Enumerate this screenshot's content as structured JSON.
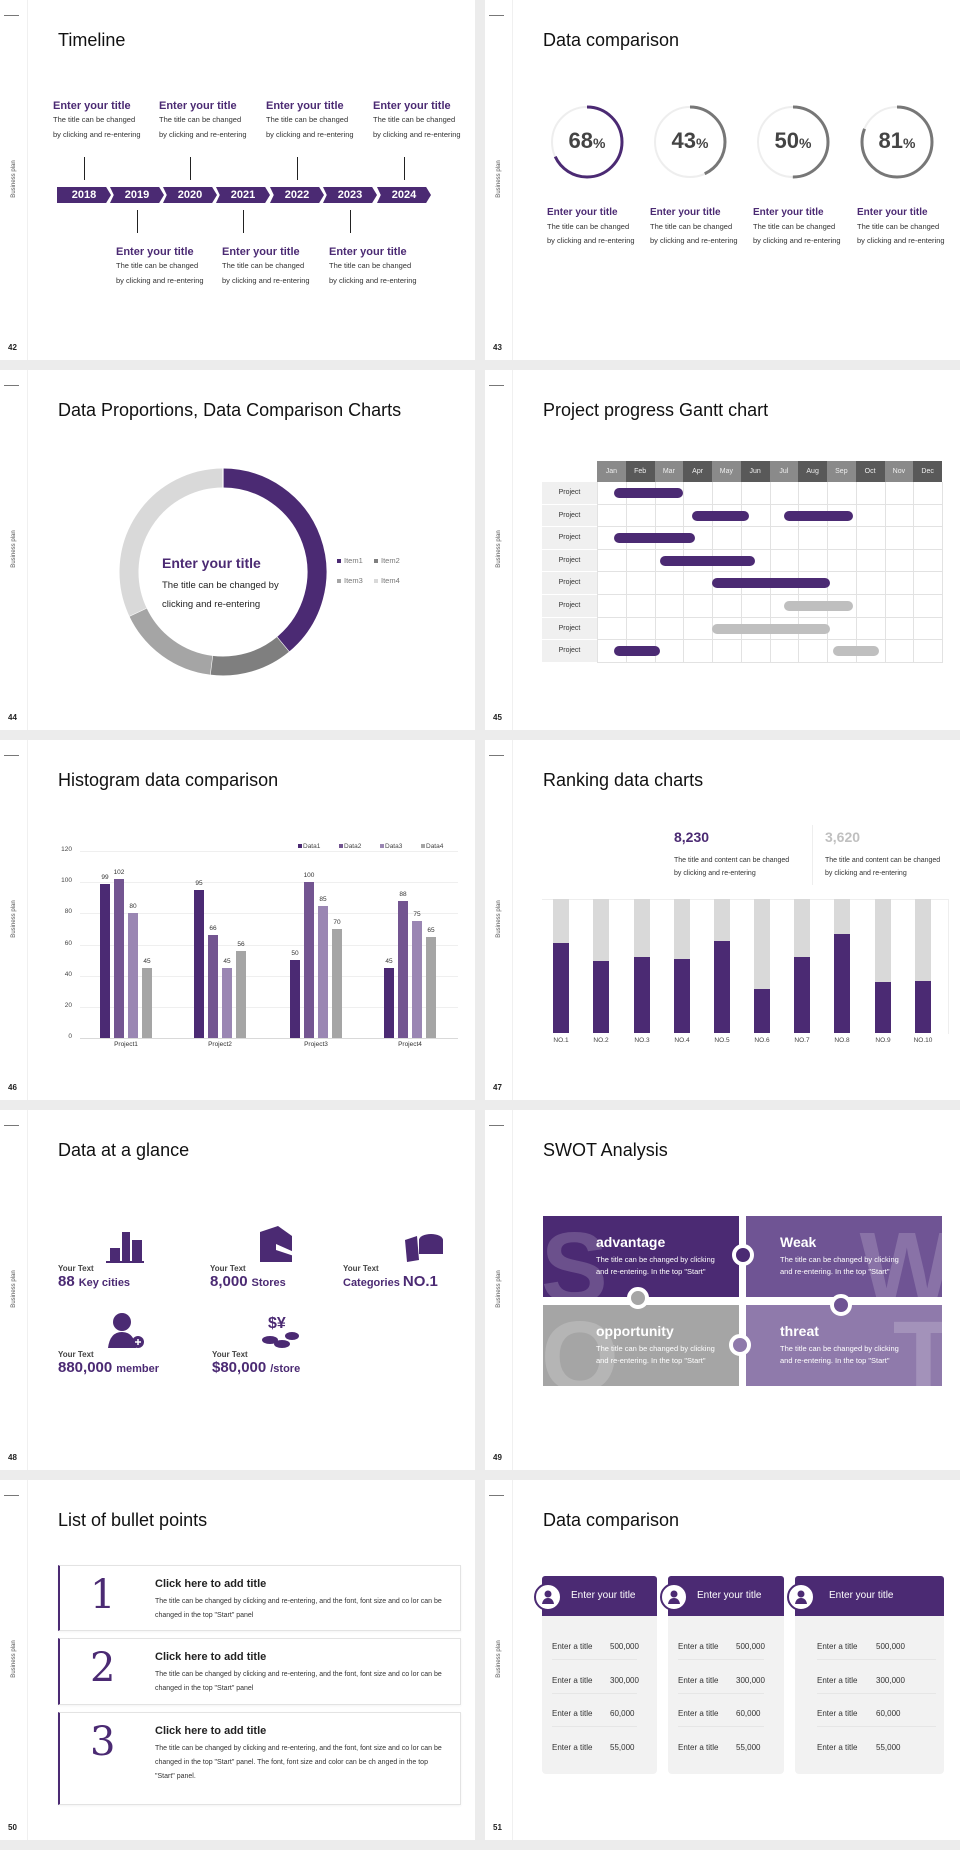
{
  "footer_label": "Business plan",
  "colors": {
    "accent": "#4b2a73",
    "accent2": "#735591",
    "accent3": "#9a86b3",
    "gray": "#a5a5a5",
    "dark_gray": "#7f7f7f",
    "light_gray": "#d9d9d9"
  },
  "slides": [
    {
      "page": "42",
      "title": "Timeline",
      "years": [
        "2018",
        "2019",
        "2020",
        "2021",
        "2022",
        "2023",
        "2024"
      ],
      "events": [
        {
          "title": "Enter your title",
          "desc1": "The title can be changed",
          "desc2": "by clicking and re-entering"
        },
        {
          "title": "Enter your title",
          "desc1": "The title can be changed",
          "desc2": "by clicking and re-entering"
        },
        {
          "title": "Enter your title",
          "desc1": "The title can be changed",
          "desc2": "by clicking and re-entering"
        },
        {
          "title": "Enter your title",
          "desc1": "The title can be changed",
          "desc2": "by clicking and re-entering"
        },
        {
          "title": "Enter your title",
          "desc1": "The title can be changed",
          "desc2": "by clicking and re-entering"
        },
        {
          "title": "Enter your title",
          "desc1": "The title can be changed",
          "desc2": "by clicking and re-entering"
        },
        {
          "title": "Enter your title",
          "desc1": "The title can be changed",
          "desc2": "by clicking and re-entering"
        }
      ]
    },
    {
      "page": "43",
      "title": "Data comparison",
      "items": [
        {
          "value": 68,
          "number": "68",
          "unit": "%",
          "color": "#4b2a73",
          "title": "Enter your title",
          "desc1": "The title can be changed",
          "desc2": "by clicking and re-entering"
        },
        {
          "value": 43,
          "number": "43",
          "unit": "%",
          "color": "#777777",
          "title": "Enter your title",
          "desc1": "The title can be changed",
          "desc2": "by clicking and re-entering"
        },
        {
          "value": 50,
          "number": "50",
          "unit": "%",
          "color": "#777777",
          "title": "Enter your title",
          "desc1": "The title can be changed",
          "desc2": "by clicking and re-entering"
        },
        {
          "value": 81,
          "number": "81",
          "unit": "%",
          "color": "#777777",
          "title": "Enter your title",
          "desc1": "The title can be changed",
          "desc2": "by clicking and re-entering"
        }
      ]
    },
    {
      "page": "44",
      "title": "Data Proportions, Data Comparison Charts",
      "center_title": "Enter your title",
      "center_desc1": "The title can be changed by",
      "center_desc2": "clicking and re-entering"
    },
    {
      "page": "45",
      "title": "Project progress Gantt chart"
    },
    {
      "page": "46",
      "title": "Histogram data comparison"
    },
    {
      "page": "47",
      "title": "Ranking data charts",
      "stats": [
        {
          "value": "8,230",
          "color": "#4b2a73",
          "desc1": "The title and content can be changed",
          "desc2": "by clicking and re-entering"
        },
        {
          "value": "3,620",
          "color": "#c0c0c0",
          "desc1": "The title and content can be changed",
          "desc2": "by clicking and re-entering"
        }
      ]
    },
    {
      "page": "48",
      "title": "Data at a glance",
      "items": [
        {
          "label": "Your Text",
          "number": "88",
          "suffix": "Key cities",
          "icon": "city-buildings-icon"
        },
        {
          "label": "Your Text",
          "number": "8,000",
          "suffix": "Stores",
          "icon": "store-icon"
        },
        {
          "label": "Your Text",
          "prefix": "Categories",
          "number": "NO.1",
          "icon": "pie-3d-icon"
        },
        {
          "label": "Your Text",
          "number": "880,000",
          "suffix": "member",
          "icon": "add-member-icon"
        },
        {
          "label": "Your Text",
          "number": "$80,000",
          "suffix": "/store",
          "icon": "coins-currency-icon"
        }
      ]
    },
    {
      "page": "49",
      "title": "SWOT Analysis",
      "quadrants": [
        {
          "letter": "S",
          "title": "advantage",
          "desc": "The title can be changed by clicking and re-entering. In the top \"Start\"",
          "color": "#4b2a73"
        },
        {
          "letter": "W",
          "title": "Weak",
          "desc": "The title can be changed by clicking and re-entering. In the top \"Start\"",
          "color": "#6f5494"
        },
        {
          "letter": "O",
          "title": "opportunity",
          "desc": "The title can be changed by clicking and re-entering. In the top \"Start\"",
          "color": "#a5a5a5"
        },
        {
          "letter": "T",
          "title": "threat",
          "desc": "The title can be changed by clicking and re-entering. In the top \"Start\"",
          "color": "#8f7aab"
        }
      ]
    },
    {
      "page": "50",
      "title": "List of bullet points",
      "items": [
        {
          "number": "1",
          "title": "Click here to add title",
          "desc": "The title can be changed by clicking and re-entering, and the font, font size and co lor can be changed in the top \"Start\" panel"
        },
        {
          "number": "2",
          "title": "Click here to add title",
          "desc": "The title can be changed by clicking and re-entering, and the font, font size and co lor can be changed in the top \"Start\" panel"
        },
        {
          "number": "3",
          "title": "Click here to add title",
          "desc": "The title can be changed by clicking and re-entering, and the font, font size and co lor can be changed in the top \"Start\" panel. The font, font size and color can be ch anged in the top \"Start\" panel."
        }
      ]
    },
    {
      "page": "51",
      "title": "Data comparison",
      "cards": [
        {
          "title": "Enter your title",
          "icon": "user-document-icon",
          "rows": [
            {
              "label": "Enter a title",
              "value": "500,000"
            },
            {
              "label": "Enter a title",
              "value": "300,000"
            },
            {
              "label": "Enter a title",
              "value": "60,000"
            },
            {
              "label": "Enter a title",
              "value": "55,000"
            }
          ]
        },
        {
          "title": "Enter your title",
          "icon": "add-user-icon",
          "rows": [
            {
              "label": "Enter a title",
              "value": "500,000"
            },
            {
              "label": "Enter a title",
              "value": "300,000"
            },
            {
              "label": "Enter a title",
              "value": "60,000"
            },
            {
              "label": "Enter a title",
              "value": "55,000"
            }
          ]
        },
        {
          "title": "Enter your title",
          "icon": "user-group-icon",
          "rows": [
            {
              "label": "Enter a title",
              "value": "500,000"
            },
            {
              "label": "Enter a title",
              "value": "300,000"
            },
            {
              "label": "Enter a title",
              "value": "60,000"
            },
            {
              "label": "Enter a title",
              "value": "55,000"
            }
          ]
        }
      ]
    }
  ],
  "chart_data": [
    {
      "type": "pie",
      "variant": "donut",
      "categories": [
        "Item1",
        "Item2",
        "Item3",
        "Item4"
      ],
      "values": [
        39,
        13,
        16,
        32
      ],
      "colors": [
        "#4b2a73",
        "#7f7f7f",
        "#a5a5a5",
        "#d9d9d9"
      ],
      "legend": "right"
    },
    {
      "type": "gantt",
      "months": [
        "Jan",
        "Feb",
        "Mar",
        "Apr",
        "May",
        "Jun",
        "Jul",
        "Aug",
        "Sep",
        "Oct",
        "Nov",
        "Dec"
      ],
      "rows": [
        {
          "label": "Project",
          "bars": [
            {
              "start": 0.6,
              "end": 3.0,
              "status": "active"
            }
          ]
        },
        {
          "label": "Project",
          "bars": [
            {
              "start": 3.3,
              "end": 5.3,
              "status": "active"
            },
            {
              "start": 6.5,
              "end": 8.9,
              "status": "active"
            }
          ]
        },
        {
          "label": "Project",
          "bars": [
            {
              "start": 0.6,
              "end": 3.4,
              "status": "active"
            }
          ]
        },
        {
          "label": "Project",
          "bars": [
            {
              "start": 2.2,
              "end": 5.5,
              "status": "active"
            }
          ]
        },
        {
          "label": "Project",
          "bars": [
            {
              "start": 4.0,
              "end": 8.1,
              "status": "active"
            }
          ]
        },
        {
          "label": "Project",
          "bars": [
            {
              "start": 6.5,
              "end": 8.9,
              "status": "planned"
            }
          ]
        },
        {
          "label": "Project",
          "bars": [
            {
              "start": 4.0,
              "end": 8.1,
              "status": "planned"
            }
          ]
        },
        {
          "label": "Project",
          "bars": [
            {
              "start": 0.6,
              "end": 2.2,
              "status": "active"
            },
            {
              "start": 8.2,
              "end": 9.8,
              "status": "planned"
            }
          ]
        }
      ],
      "colors": {
        "active": "#4b2a73",
        "planned": "#bfbfbf"
      }
    },
    {
      "type": "bar",
      "categories": [
        "Project1",
        "Project2",
        "Project3",
        "Project4"
      ],
      "series": [
        {
          "name": "Data1",
          "values": [
            99,
            95,
            50,
            45
          ],
          "color": "#4b2a73"
        },
        {
          "name": "Data2",
          "values": [
            102,
            66,
            100,
            88
          ],
          "color": "#735591"
        },
        {
          "name": "Data3",
          "values": [
            80,
            45,
            85,
            75
          ],
          "color": "#9a86b3"
        },
        {
          "name": "Data4",
          "values": [
            45,
            56,
            70,
            65
          ],
          "color": "#a5a5a5"
        }
      ],
      "ylim": [
        0,
        120
      ],
      "yticks": [
        "0",
        "20",
        "40",
        "60",
        "80",
        "100",
        "120"
      ],
      "grid": true,
      "legend": "top-right",
      "data_labels": true
    },
    {
      "type": "bar",
      "variant": "stacked-100",
      "categories": [
        "NO.1",
        "NO.2",
        "NO.3",
        "NO.4",
        "NO.5",
        "NO.6",
        "NO.7",
        "NO.8",
        "NO.9",
        "NO.10"
      ],
      "values": [
        0.67,
        0.54,
        0.57,
        0.55,
        0.69,
        0.33,
        0.57,
        0.74,
        0.38,
        0.39
      ],
      "colors": {
        "value": "#4b2a73",
        "remainder": "#d9d9d9"
      }
    }
  ]
}
